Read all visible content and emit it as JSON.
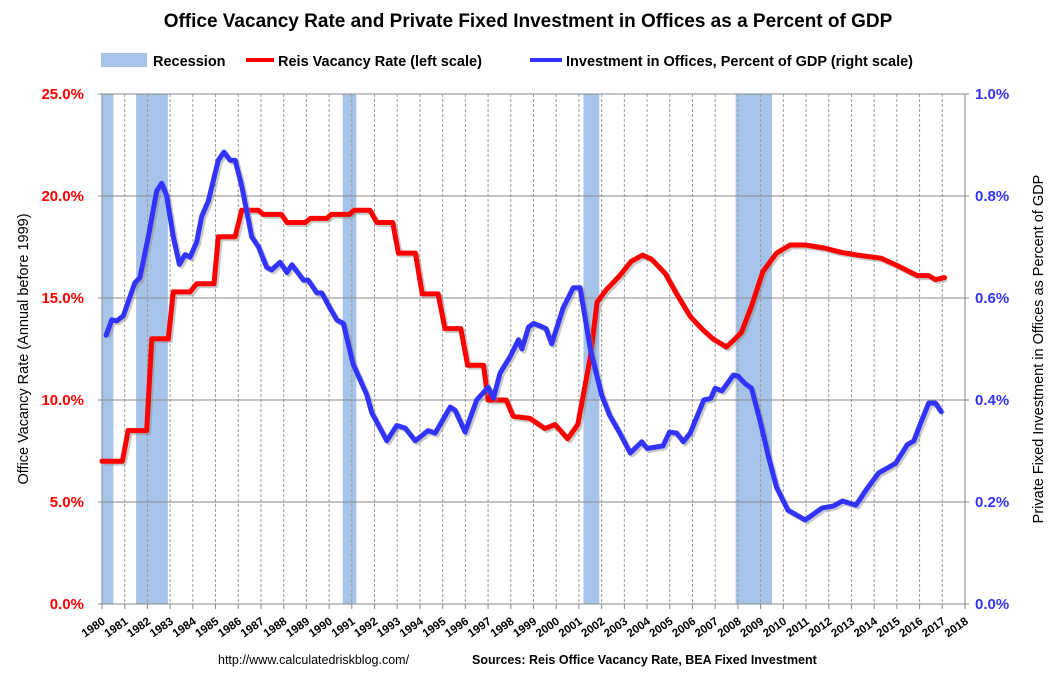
{
  "chart_data": {
    "type": "line",
    "title": "Office Vacancy Rate and Private Fixed Investment in Offices as a Percent of GDP",
    "ylabel": "Office Vacancy Rate (Annual before 1999)",
    "y2label": "Private Fixed Investment in Offices as Percent of GDP",
    "xlim": [
      1980,
      2018
    ],
    "ylim": [
      0,
      25
    ],
    "y2lim": [
      0,
      1.0
    ],
    "grid": true,
    "legend_placement": "top",
    "x_ticks": [
      "1980",
      "1981",
      "1982",
      "1983",
      "1984",
      "1985",
      "1986",
      "1987",
      "1988",
      "1989",
      "1990",
      "1991",
      "1992",
      "1993",
      "1994",
      "1995",
      "1996",
      "1997",
      "1998",
      "1999",
      "2000",
      "2001",
      "2002",
      "2003",
      "2004",
      "2005",
      "2006",
      "2007",
      "2008",
      "2009",
      "2010",
      "2011",
      "2012",
      "2013",
      "2014",
      "2015",
      "2016",
      "2017",
      "2018"
    ],
    "y_ticks": [
      "0.0%",
      "5.0%",
      "10.0%",
      "15.0%",
      "20.0%",
      "25.0%"
    ],
    "y2_ticks": [
      "0.0%",
      "0.2%",
      "0.4%",
      "0.6%",
      "0.8%",
      "1.0%"
    ],
    "recession_label": "Recession",
    "recessions": [
      [
        1980.0,
        1980.5
      ],
      [
        1981.5,
        1982.9
      ],
      [
        1990.6,
        1991.2
      ],
      [
        2001.2,
        2001.9
      ],
      [
        2007.9,
        2009.5
      ]
    ],
    "colors": {
      "vacancy": "#ff0000",
      "investment": "#3333ff",
      "recession": "#a6c4ea"
    },
    "series": [
      {
        "name": "Reis Vacancy Rate (left scale)",
        "axis": "left",
        "points": [
          [
            1980.0,
            7.0
          ],
          [
            1980.9,
            7.0
          ],
          [
            1981.15,
            8.5
          ],
          [
            1981.97,
            8.5
          ],
          [
            1982.19,
            13.0
          ],
          [
            1982.92,
            13.0
          ],
          [
            1983.14,
            15.3
          ],
          [
            1983.88,
            15.3
          ],
          [
            1984.17,
            15.7
          ],
          [
            1984.93,
            15.7
          ],
          [
            1985.12,
            18.0
          ],
          [
            1985.86,
            18.0
          ],
          [
            1986.15,
            19.3
          ],
          [
            1986.89,
            19.3
          ],
          [
            1987.1,
            19.1
          ],
          [
            1987.9,
            19.1
          ],
          [
            1988.14,
            18.7
          ],
          [
            1988.95,
            18.7
          ],
          [
            1989.17,
            18.9
          ],
          [
            1989.9,
            18.9
          ],
          [
            1990.1,
            19.1
          ],
          [
            1990.9,
            19.1
          ],
          [
            1991.1,
            19.3
          ],
          [
            1991.8,
            19.3
          ],
          [
            1992.1,
            18.7
          ],
          [
            1992.8,
            18.7
          ],
          [
            1993.05,
            17.2
          ],
          [
            1993.8,
            17.2
          ],
          [
            1994.1,
            15.2
          ],
          [
            1994.8,
            15.2
          ],
          [
            1995.1,
            13.5
          ],
          [
            1995.8,
            13.5
          ],
          [
            1996.1,
            11.7
          ],
          [
            1996.8,
            11.7
          ],
          [
            1997.0,
            10.0
          ],
          [
            1997.8,
            10.0
          ],
          [
            1998.1,
            9.2
          ],
          [
            1998.85,
            9.1
          ],
          [
            1999.5,
            8.6
          ],
          [
            1999.95,
            8.8
          ],
          [
            2000.5,
            8.1
          ],
          [
            2000.95,
            8.8
          ],
          [
            2001.5,
            12.1
          ],
          [
            2001.8,
            14.8
          ],
          [
            2002.2,
            15.4
          ],
          [
            2002.8,
            16.1
          ],
          [
            2003.3,
            16.8
          ],
          [
            2003.8,
            17.1
          ],
          [
            2004.2,
            16.9
          ],
          [
            2004.8,
            16.2
          ],
          [
            2005.3,
            15.2
          ],
          [
            2005.9,
            14.1
          ],
          [
            2006.4,
            13.5
          ],
          [
            2006.9,
            13.0
          ],
          [
            2007.5,
            12.6
          ],
          [
            2008.15,
            13.3
          ],
          [
            2008.6,
            14.6
          ],
          [
            2009.1,
            16.3
          ],
          [
            2009.7,
            17.2
          ],
          [
            2010.3,
            17.6
          ],
          [
            2010.97,
            17.6
          ],
          [
            2011.8,
            17.45
          ],
          [
            2012.5,
            17.25
          ],
          [
            2013.3,
            17.1
          ],
          [
            2014.3,
            16.95
          ],
          [
            2015.0,
            16.6
          ],
          [
            2015.9,
            16.1
          ],
          [
            2016.4,
            16.1
          ],
          [
            2016.7,
            15.9
          ],
          [
            2017.1,
            16.0
          ]
        ]
      },
      {
        "name": "Investment in Offices, Percent of GDP (right scale)",
        "axis": "right",
        "points": [
          [
            1980.18,
            0.527
          ],
          [
            1980.43,
            0.557
          ],
          [
            1980.65,
            0.555
          ],
          [
            1980.94,
            0.565
          ],
          [
            1981.45,
            0.63
          ],
          [
            1981.67,
            0.64
          ],
          [
            1982.04,
            0.72
          ],
          [
            1982.41,
            0.81
          ],
          [
            1982.63,
            0.825
          ],
          [
            1982.85,
            0.8
          ],
          [
            1983.14,
            0.72
          ],
          [
            1983.41,
            0.666
          ],
          [
            1983.66,
            0.685
          ],
          [
            1983.88,
            0.68
          ],
          [
            1984.17,
            0.71
          ],
          [
            1984.39,
            0.76
          ],
          [
            1984.68,
            0.79
          ],
          [
            1985.12,
            0.87
          ],
          [
            1985.37,
            0.886
          ],
          [
            1985.64,
            0.87
          ],
          [
            1985.86,
            0.87
          ],
          [
            1986.15,
            0.82
          ],
          [
            1986.59,
            0.72
          ],
          [
            1986.89,
            0.7
          ],
          [
            1987.25,
            0.66
          ],
          [
            1987.47,
            0.655
          ],
          [
            1987.84,
            0.67
          ],
          [
            1988.14,
            0.65
          ],
          [
            1988.36,
            0.665
          ],
          [
            1988.87,
            0.635
          ],
          [
            1989.08,
            0.635
          ],
          [
            1989.46,
            0.61
          ],
          [
            1989.68,
            0.61
          ],
          [
            1990.04,
            0.58
          ],
          [
            1990.34,
            0.557
          ],
          [
            1990.63,
            0.55
          ],
          [
            1991.06,
            0.47
          ],
          [
            1991.66,
            0.41
          ],
          [
            1991.88,
            0.375
          ],
          [
            1992.54,
            0.32
          ],
          [
            1992.98,
            0.35
          ],
          [
            1993.35,
            0.345
          ],
          [
            1993.79,
            0.32
          ],
          [
            1994.36,
            0.34
          ],
          [
            1994.67,
            0.335
          ],
          [
            1995.33,
            0.386
          ],
          [
            1995.55,
            0.38
          ],
          [
            1995.99,
            0.337
          ],
          [
            1996.5,
            0.4
          ],
          [
            1997.0,
            0.425
          ],
          [
            1997.24,
            0.404
          ],
          [
            1997.53,
            0.453
          ],
          [
            1997.97,
            0.485
          ],
          [
            1998.34,
            0.518
          ],
          [
            1998.49,
            0.5
          ],
          [
            1998.78,
            0.543
          ],
          [
            1999.0,
            0.55
          ],
          [
            1999.3,
            0.545
          ],
          [
            1999.55,
            0.54
          ],
          [
            1999.8,
            0.51
          ],
          [
            2000.3,
            0.58
          ],
          [
            2000.75,
            0.62
          ],
          [
            2001.05,
            0.62
          ],
          [
            2001.5,
            0.5
          ],
          [
            2002.0,
            0.41
          ],
          [
            2002.35,
            0.37
          ],
          [
            2002.8,
            0.335
          ],
          [
            2003.26,
            0.296
          ],
          [
            2003.77,
            0.318
          ],
          [
            2004.0,
            0.305
          ],
          [
            2004.7,
            0.31
          ],
          [
            2004.99,
            0.337
          ],
          [
            2005.3,
            0.335
          ],
          [
            2005.6,
            0.318
          ],
          [
            2005.9,
            0.335
          ],
          [
            2006.5,
            0.4
          ],
          [
            2006.8,
            0.403
          ],
          [
            2007.0,
            0.423
          ],
          [
            2007.3,
            0.418
          ],
          [
            2007.8,
            0.449
          ],
          [
            2008.0,
            0.447
          ],
          [
            2008.3,
            0.433
          ],
          [
            2008.6,
            0.423
          ],
          [
            2009.0,
            0.355
          ],
          [
            2009.35,
            0.288
          ],
          [
            2009.7,
            0.229
          ],
          [
            2010.2,
            0.184
          ],
          [
            2010.97,
            0.165
          ],
          [
            2011.7,
            0.188
          ],
          [
            2012.2,
            0.192
          ],
          [
            2012.6,
            0.202
          ],
          [
            2013.2,
            0.194
          ],
          [
            2013.7,
            0.227
          ],
          [
            2014.2,
            0.257
          ],
          [
            2014.6,
            0.267
          ],
          [
            2014.95,
            0.276
          ],
          [
            2015.45,
            0.312
          ],
          [
            2015.75,
            0.32
          ],
          [
            2016.05,
            0.355
          ],
          [
            2016.4,
            0.394
          ],
          [
            2016.7,
            0.394
          ],
          [
            2016.95,
            0.377
          ]
        ]
      }
    ]
  },
  "footer": {
    "url": "http://www.calculatedriskblog.com/",
    "sources": "Sources: Reis Office Vacancy Rate, BEA Fixed Investment"
  }
}
